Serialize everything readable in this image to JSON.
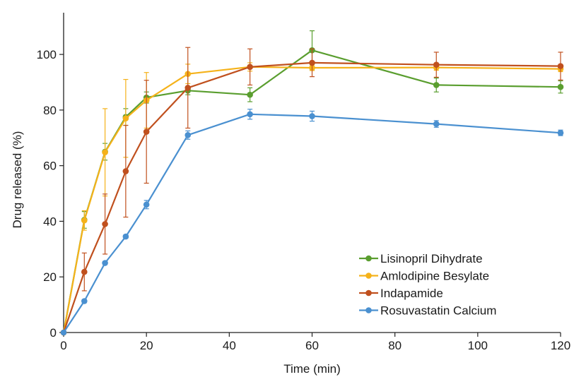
{
  "chart_data": {
    "type": "line",
    "title": "",
    "xlabel": "Time (min)",
    "ylabel": "Drug released (%)",
    "xlim": [
      0,
      120
    ],
    "ylim": [
      0,
      115
    ],
    "xticks": [
      0,
      20,
      40,
      60,
      80,
      100,
      120
    ],
    "yticks": [
      0,
      20,
      40,
      60,
      80,
      100
    ],
    "grid": false,
    "legend_position": "bottom-right",
    "x": [
      0,
      5,
      10,
      15,
      20,
      30,
      45,
      60,
      90,
      120
    ],
    "series": [
      {
        "name": "Lisinopril Dihydrate",
        "color": "#5a9e2f",
        "values": [
          0,
          40.5,
          65,
          77.5,
          84.5,
          87,
          85.5,
          101.5,
          89,
          88.3
        ],
        "errors": [
          0,
          3,
          3,
          3,
          2,
          1.5,
          2.5,
          7,
          2.5,
          2.2
        ]
      },
      {
        "name": "Amlodipine Besylate",
        "color": "#f5b21a",
        "values": [
          0,
          40.3,
          64.8,
          77,
          83.5,
          93,
          95.5,
          95.2,
          95.3,
          94.8
        ],
        "errors": [
          0,
          3.5,
          15.7,
          14,
          10,
          3.5,
          1.5,
          1,
          1,
          1
        ]
      },
      {
        "name": "Indapamide",
        "color": "#c0501e",
        "values": [
          0,
          21.8,
          39,
          58,
          72.2,
          88,
          95.5,
          97,
          96.3,
          95.8
        ],
        "errors": [
          0,
          6.8,
          10.8,
          16.5,
          18.5,
          14.5,
          6.5,
          5,
          4.5,
          5
        ]
      },
      {
        "name": "Rosuvastatin Calcium",
        "color": "#4a90d0",
        "values": [
          0,
          11.3,
          25,
          34.5,
          46,
          71,
          78.5,
          77.8,
          75,
          71.8
        ],
        "errors": [
          0,
          0.6,
          0.6,
          0.6,
          1.5,
          1.5,
          1.8,
          1.8,
          1.2,
          1
        ]
      }
    ]
  }
}
